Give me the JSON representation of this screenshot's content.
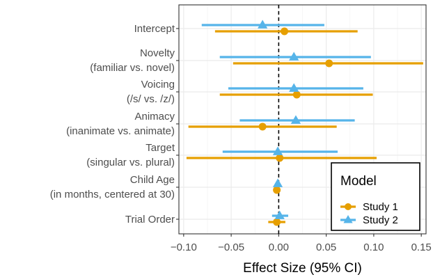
{
  "chart_data": {
    "type": "forest",
    "xlabel": "Effect Size (95% CI)",
    "xlim": [
      -0.105,
      0.155
    ],
    "xticks": [
      -0.1,
      -0.05,
      0.0,
      0.05,
      0.1,
      0.15
    ],
    "xtick_labels": [
      "−0.10",
      "−0.05",
      "0.00",
      "0.05",
      "0.10",
      "0.15"
    ],
    "reference_line": 0,
    "grid": true,
    "legend": {
      "title": "Model",
      "position": "bottom-right",
      "entries": [
        "Study 1",
        "Study 2"
      ]
    },
    "categories": [
      [
        "Intercept"
      ],
      [
        "Novelty",
        "(familiar vs. novel)"
      ],
      [
        "Voicing",
        "(/s/ vs. /z/)"
      ],
      [
        "Animacy",
        "(inanimate vs. animate)"
      ],
      [
        "Target",
        "(singular vs. plural)"
      ],
      [
        "Child Age",
        "(in months, centered at 30)"
      ],
      [
        "Trial Order"
      ]
    ],
    "series": [
      {
        "name": "Study 1",
        "color": "#E69F00",
        "shape": "circle",
        "estimate": [
          0.006,
          0.053,
          0.019,
          -0.017,
          0.001,
          -0.002,
          -0.002
        ],
        "lower": [
          -0.067,
          -0.048,
          -0.062,
          -0.095,
          -0.097,
          -0.004,
          -0.011
        ],
        "upper": [
          0.083,
          0.152,
          0.099,
          0.061,
          0.103,
          0.001,
          0.007
        ]
      },
      {
        "name": "Study 2",
        "color": "#56B4E9",
        "shape": "triangle",
        "estimate": [
          -0.017,
          0.016,
          0.016,
          0.018,
          -0.001,
          -0.001,
          0.001
        ],
        "lower": [
          -0.081,
          -0.062,
          -0.053,
          -0.041,
          -0.059,
          -0.003,
          -0.007
        ],
        "upper": [
          0.048,
          0.097,
          0.089,
          0.08,
          0.062,
          0.001,
          0.01
        ]
      }
    ]
  }
}
